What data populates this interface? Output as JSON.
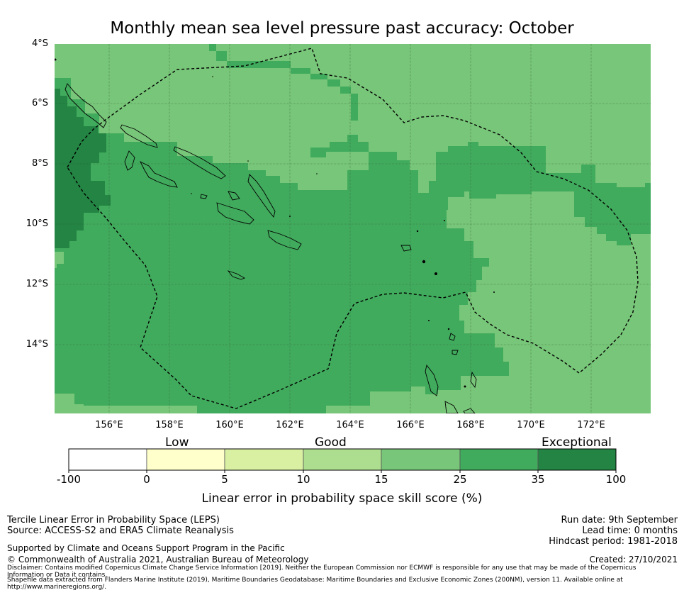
{
  "title": "Monthly mean sea level pressure past accuracy: October",
  "map": {
    "lat_ticks": [
      "4°S",
      "6°S",
      "8°S",
      "10°S",
      "12°S",
      "14°S"
    ],
    "lon_ticks": [
      "156°E",
      "158°E",
      "160°E",
      "162°E",
      "164°E",
      "166°E",
      "168°E",
      "170°E",
      "172°E"
    ],
    "colors": {
      "c15_25": "#78c679",
      "c25_35": "#41ab5d",
      "c35_100": "#238443",
      "grid": "#2f5a33",
      "boundary": "#000000"
    }
  },
  "colorbar": {
    "categories": [
      "Low",
      "Good",
      "Exceptional"
    ],
    "ticks": [
      "-100",
      "0",
      "5",
      "10",
      "15",
      "25",
      "35",
      "100"
    ],
    "colors": [
      "#ffffff",
      "#ffffcc",
      "#d9f0a3",
      "#addd8e",
      "#78c679",
      "#41ab5d",
      "#238443"
    ],
    "label": "Linear error in probability space skill score (%)"
  },
  "footer": {
    "method": "Tercile Linear Error in Probability Space (LEPS)",
    "source": "Source: ACCESS-S2 and ERA5 Climate Reanalysis",
    "support": "Supported by Climate and Oceans Support Program in the Pacific",
    "copyright": "© Commonwealth of Australia 2021, Australian Bureau of Meteorology",
    "disclaimer": "Disclaimer: Contains modified Copernicus Climate Change Service Information [2019]. Neither the European Commission nor ECMWF is responsible for any use that may be made of the Copernicus Information or Data it contains.",
    "shapefile": "Shapefile data extracted from Flanders Marine Institute (2019), Maritime Boundaries Geodatabase: Maritime Boundaries and Exclusive Economic Zones (200NM), version 11. Available online at http://www.marineregions.org/.",
    "run_date": "Run date: 9th September",
    "lead_time": "Lead time: 0 months",
    "hindcast": "Hindcast period: 1981-2018",
    "created": "Created: 27/10/2021"
  }
}
